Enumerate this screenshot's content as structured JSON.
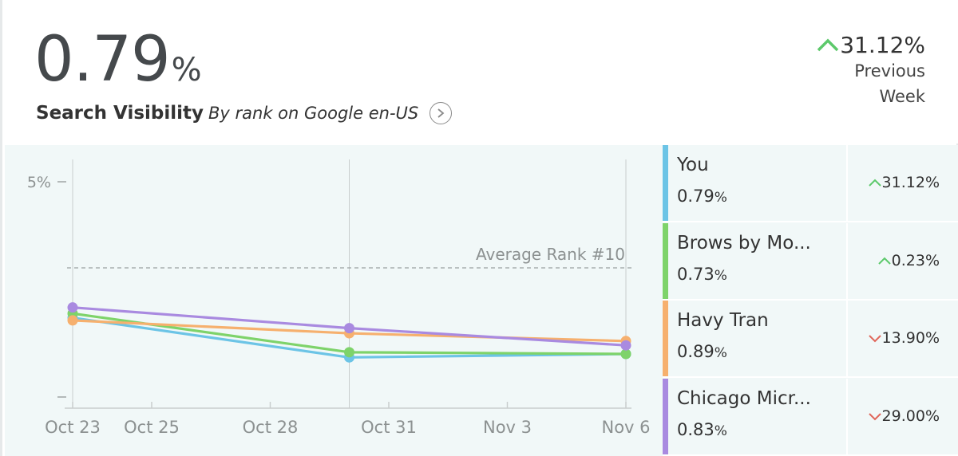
{
  "header": {
    "value": "0.79",
    "value_unit": "%",
    "title": "Search Visibility",
    "subtitle": "By rank on Google en-US",
    "change": "31.12%",
    "change_label": "Previous Week",
    "change_direction": "up"
  },
  "colors": {
    "up": "#5cc96b",
    "down": "#e0665a",
    "you": "#6cc4e6",
    "brows": "#7ed36a",
    "havy": "#f6b06e",
    "chicago": "#a98ae0",
    "grid": "#c9cece",
    "avg_line": "#9aa0a0"
  },
  "legend": [
    {
      "name": "You",
      "value": "0.79",
      "unit": "%",
      "change": "31.12%",
      "direction": "up",
      "color": "#6cc4e6"
    },
    {
      "name": "Brows by Mo...",
      "value": "0.73",
      "unit": "%",
      "change": "0.23%",
      "direction": "up",
      "color": "#7ed36a"
    },
    {
      "name": "Havy Tran",
      "value": "0.89",
      "unit": "%",
      "change": "13.90%",
      "direction": "down",
      "color": "#f6b06e"
    },
    {
      "name": "Chicago Micr...",
      "value": "0.83",
      "unit": "%",
      "change": "29.00%",
      "direction": "down",
      "color": "#a98ae0"
    }
  ],
  "chart_data": {
    "type": "line",
    "x_tick_labels": [
      "Oct 23",
      "Oct 25",
      "Oct 28",
      "Oct 31",
      "Nov 3",
      "Nov 6"
    ],
    "x_ticks": [
      "2023-10-23",
      "2023-10-25",
      "2023-10-28",
      "2023-10-31",
      "2023-11-03",
      "2023-11-06"
    ],
    "x": [
      "2023-10-23",
      "2023-10-30",
      "2023-11-06"
    ],
    "xlim": [
      "2023-10-23",
      "2023-11-06"
    ],
    "y_tick_labels": [
      "5%"
    ],
    "ylim": [
      0,
      5.6
    ],
    "reference_line": {
      "label": "Average Rank #10",
      "value": 3.0
    },
    "series": [
      {
        "name": "You",
        "values": [
          1.84,
          0.92,
          1.0
        ],
        "color": "#6cc4e6"
      },
      {
        "name": "Brows by Mo...",
        "values": [
          1.94,
          1.04,
          1.0
        ],
        "color": "#7ed36a"
      },
      {
        "name": "Havy Tran",
        "values": [
          1.78,
          1.48,
          1.3
        ],
        "color": "#f6b06e"
      },
      {
        "name": "Chicago Micr...",
        "values": [
          2.08,
          1.6,
          1.2
        ],
        "color": "#a98ae0"
      }
    ]
  }
}
